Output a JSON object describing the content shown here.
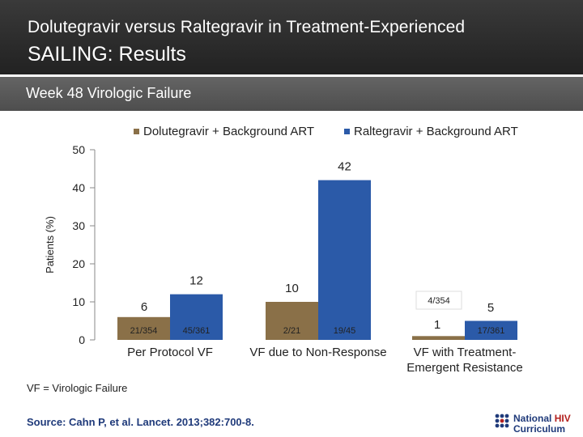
{
  "header": {
    "line1": "Dolutegravir versus Raltegravir in Treatment-Experienced",
    "line2": "SAILING: Results"
  },
  "band": {
    "title": "Week 48 Virologic Failure"
  },
  "legend": {
    "dtg": "Dolutegravir + Background ART",
    "ral": "Raltegravir + Background ART"
  },
  "colors": {
    "dtg": "#8a7048",
    "ral": "#2b5aa8"
  },
  "chart_data": {
    "type": "bar",
    "ylabel": "Patients (%)",
    "ylim": [
      0,
      50
    ],
    "yticks": [
      0,
      10,
      20,
      30,
      40,
      50
    ],
    "grid": false,
    "legend_position": "top",
    "categories": [
      "Per Protocol VF",
      "VF due to Non-Response",
      "VF with Treatment-Emergent Resistance"
    ],
    "category_lines": [
      [
        "Per Protocol VF"
      ],
      [
        "VF due to Non-Response"
      ],
      [
        "VF with Treatment-",
        "Emergent Resistance"
      ]
    ],
    "series": [
      {
        "name": "Dolutegravir + Background ART",
        "values": [
          6,
          10,
          1
        ],
        "counts": [
          "21/354",
          "2/21",
          "4/354"
        ]
      },
      {
        "name": "Raltegravir + Background ART",
        "values": [
          12,
          42,
          5
        ],
        "counts": [
          "45/361",
          "19/45",
          "17/361"
        ]
      }
    ]
  },
  "footnote": "VF = Virologic Failure",
  "source": "Source: Cahn P, et al. Lancet. 2013;382:700-8.",
  "logo": {
    "line1a": "National",
    "line1b": "HIV",
    "line2": "Curriculum"
  }
}
